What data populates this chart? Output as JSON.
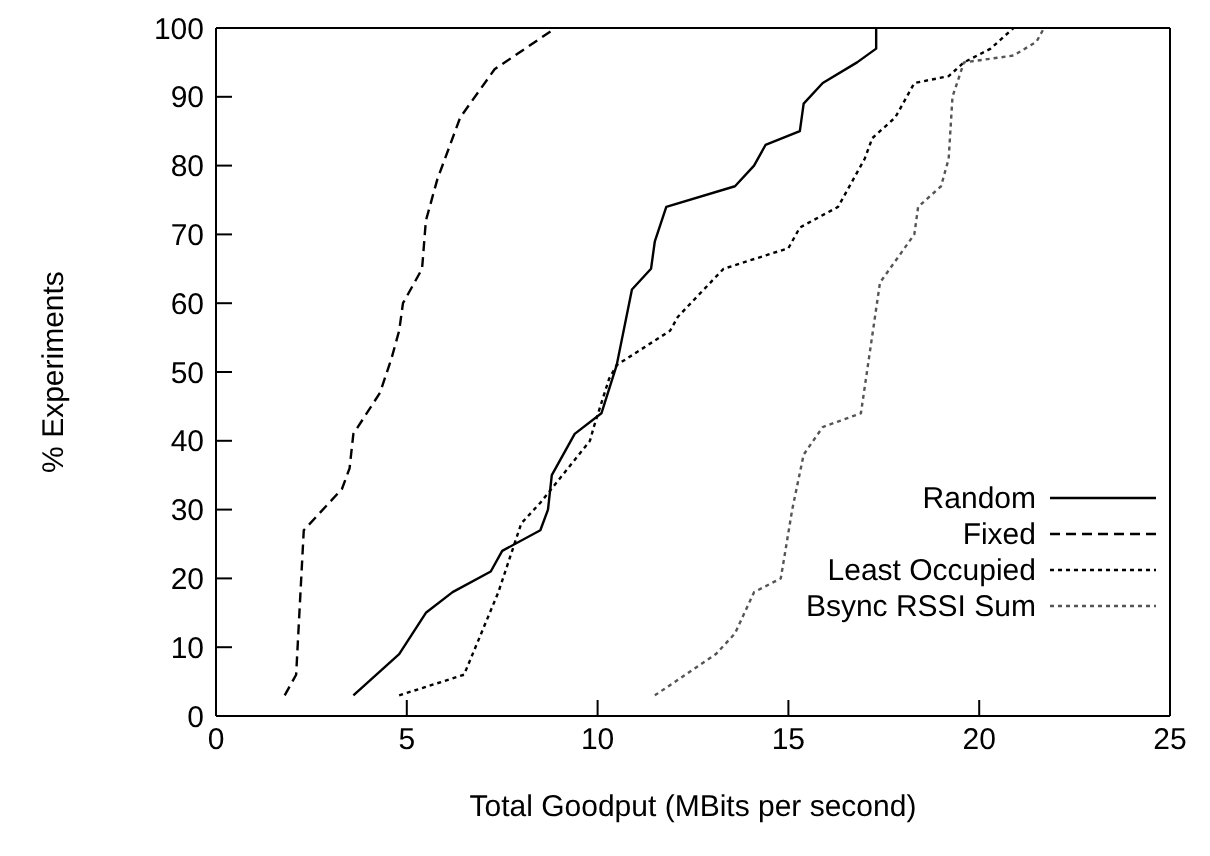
{
  "chart_data": {
    "type": "line",
    "xlabel": "Total Goodput (MBits per second)",
    "ylabel": "% Experiments",
    "xlim": [
      0,
      25
    ],
    "xticks": [
      0,
      5,
      10,
      15,
      20,
      25
    ],
    "ylim": [
      0,
      100
    ],
    "yticks": [
      0,
      10,
      20,
      30,
      40,
      50,
      60,
      70,
      80,
      90,
      100
    ],
    "legend": "bottom right",
    "marker": "none",
    "series": [
      {
        "name": "Random",
        "color": "#000000",
        "line_style": "solid",
        "x": [
          3.6,
          4.8,
          5.5,
          6.2,
          7.2,
          7.5,
          8.5,
          8.7,
          8.8,
          9.4,
          10.1,
          10.5,
          10.9,
          11.4,
          11.5,
          11.8,
          13.6,
          14.1,
          14.4,
          15.3,
          15.4,
          15.9,
          16.8,
          17.3,
          17.3
        ],
        "values": [
          3,
          9,
          15,
          18,
          21,
          24,
          27,
          30,
          35,
          41,
          44,
          51,
          62,
          65,
          69,
          74,
          77,
          80,
          83,
          85,
          89,
          92,
          95,
          97,
          100
        ]
      },
      {
        "name": "Fixed",
        "color": "#000000",
        "line_style": "dashed",
        "x": [
          1.8,
          2.1,
          2.3,
          3.3,
          3.5,
          3.6,
          4.3,
          4.6,
          4.8,
          4.9,
          5.4,
          5.5,
          5.8,
          6.4,
          7.3,
          8.9
        ],
        "values": [
          3,
          6,
          27,
          33,
          36,
          41,
          47,
          52,
          56,
          60,
          65,
          72,
          78,
          87,
          94,
          100
        ]
      },
      {
        "name": "Least Occupied",
        "color": "#000000",
        "line_style": "dotted",
        "x": [
          4.8,
          6.5,
          7.4,
          8.0,
          8.5,
          9.8,
          9.9,
          10.3,
          10.5,
          11.9,
          12.1,
          13.3,
          15.0,
          15.3,
          16.3,
          17.0,
          17.2,
          17.8,
          18.3,
          19.2,
          19.6,
          20.3,
          20.9
        ],
        "values": [
          3,
          6,
          18,
          28,
          31,
          40,
          42,
          49,
          51,
          56,
          58,
          65,
          68,
          71,
          74,
          81,
          84,
          87,
          92,
          93,
          95,
          97,
          100
        ]
      },
      {
        "name": "Bsync RSSI Sum",
        "color": "#555555",
        "line_style": "dotted",
        "x": [
          11.5,
          13.1,
          13.6,
          14.1,
          14.8,
          15.1,
          15.4,
          15.9,
          16.9,
          17.4,
          18.3,
          18.4,
          19.0,
          19.2,
          19.3,
          19.6,
          20.9,
          21.5,
          21.7
        ],
        "values": [
          3,
          9,
          12,
          18,
          20,
          30,
          38,
          42,
          44,
          63,
          70,
          74,
          77,
          81,
          90,
          95,
          96,
          98,
          100
        ]
      }
    ]
  }
}
